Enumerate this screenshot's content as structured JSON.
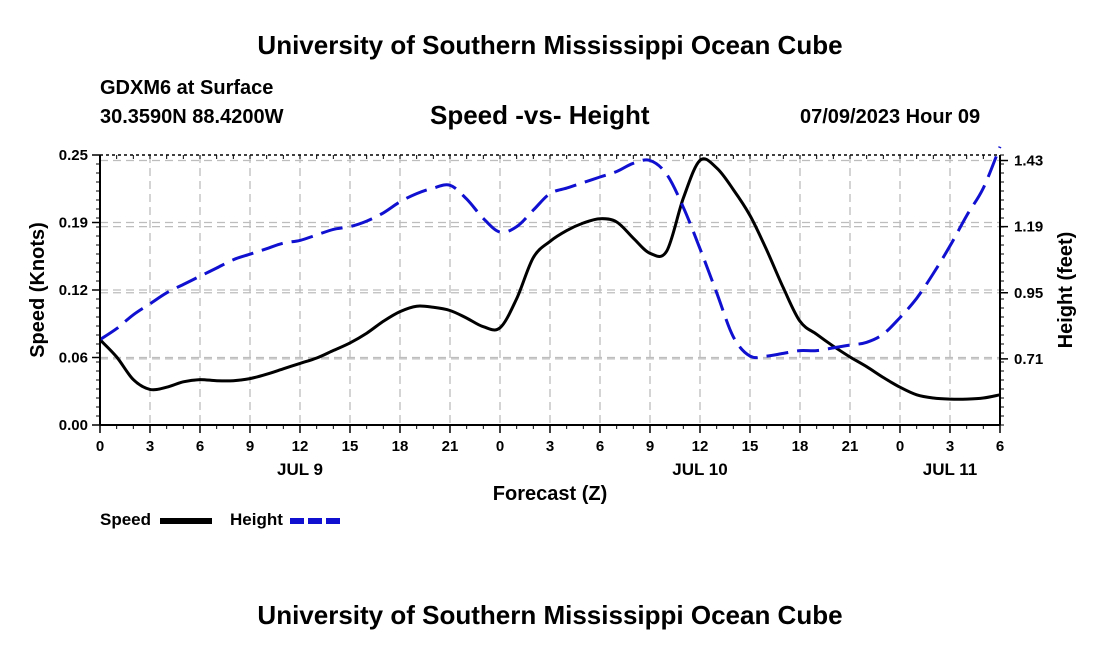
{
  "header": {
    "main_title": "University of Southern Mississippi Ocean Cube",
    "station": "GDXM6 at Surface",
    "coords": "30.3590N  88.4200W",
    "chart_title": "Speed -vs- Height",
    "datetime": "07/09/2023 Hour 09"
  },
  "footer": {
    "title": "University of Southern Mississippi Ocean Cube"
  },
  "legend": {
    "speed_label": "Speed",
    "height_label": "Height"
  },
  "colors": {
    "speed": "#000000",
    "height": "#1010d0",
    "grid": "#bdbdbd"
  },
  "chart_data": {
    "type": "line",
    "title": "Speed -vs- Height",
    "xlabel": "Forecast (Z)",
    "ylabel": "Speed (Knots)",
    "y2label": "Height (feet)",
    "x_range": [
      0,
      54
    ],
    "x_ticks": [
      {
        "x": 0,
        "label": "0"
      },
      {
        "x": 3,
        "label": "3"
      },
      {
        "x": 6,
        "label": "6"
      },
      {
        "x": 9,
        "label": "9"
      },
      {
        "x": 12,
        "label": "12"
      },
      {
        "x": 15,
        "label": "15"
      },
      {
        "x": 18,
        "label": "18"
      },
      {
        "x": 21,
        "label": "21"
      },
      {
        "x": 24,
        "label": "0"
      },
      {
        "x": 27,
        "label": "3"
      },
      {
        "x": 30,
        "label": "6"
      },
      {
        "x": 33,
        "label": "9"
      },
      {
        "x": 36,
        "label": "12"
      },
      {
        "x": 39,
        "label": "15"
      },
      {
        "x": 42,
        "label": "18"
      },
      {
        "x": 45,
        "label": "21"
      },
      {
        "x": 48,
        "label": "0"
      },
      {
        "x": 51,
        "label": "3"
      },
      {
        "x": 54,
        "label": "6"
      }
    ],
    "day_labels": [
      {
        "x": 12,
        "label": "JUL 9"
      },
      {
        "x": 36,
        "label": "JUL 10"
      },
      {
        "x": 51,
        "label": "JUL 11"
      }
    ],
    "ylim": [
      0,
      0.25
    ],
    "y_ticks": [
      "0.00",
      "0.06",
      "0.12",
      "0.19",
      "0.25"
    ],
    "y_tick_values": [
      0,
      0.0625,
      0.125,
      0.1875,
      0.25
    ],
    "y2lim": [
      0.47,
      1.45
    ],
    "y2_ticks": [
      "0.71",
      "0.95",
      "1.19",
      "1.43"
    ],
    "y2_tick_values": [
      0.71,
      0.95,
      1.19,
      1.43
    ],
    "series": [
      {
        "name": "Speed",
        "axis": "left",
        "style": "solid",
        "x": [
          0,
          1,
          2,
          3,
          4,
          5,
          6,
          7,
          8,
          9,
          10,
          11,
          12,
          13,
          14,
          15,
          16,
          17,
          18,
          19,
          20,
          21,
          22,
          23,
          24,
          25,
          26,
          27,
          28,
          29,
          30,
          31,
          32,
          33,
          34,
          35,
          36,
          37,
          38,
          39,
          40,
          41,
          42,
          43,
          44,
          45,
          46,
          47,
          48,
          49,
          50,
          51,
          52,
          53,
          54
        ],
        "values": [
          0.079,
          0.063,
          0.042,
          0.033,
          0.035,
          0.04,
          0.042,
          0.041,
          0.041,
          0.043,
          0.047,
          0.052,
          0.057,
          0.062,
          0.069,
          0.076,
          0.085,
          0.096,
          0.105,
          0.11,
          0.109,
          0.106,
          0.099,
          0.091,
          0.09,
          0.117,
          0.155,
          0.17,
          0.18,
          0.187,
          0.191,
          0.188,
          0.173,
          0.159,
          0.161,
          0.21,
          0.245,
          0.238,
          0.218,
          0.194,
          0.162,
          0.127,
          0.096,
          0.084,
          0.073,
          0.063,
          0.054,
          0.044,
          0.035,
          0.028,
          0.025,
          0.024,
          0.024,
          0.025,
          0.028
        ]
      },
      {
        "name": "Height",
        "axis": "right",
        "style": "dashed",
        "x": [
          0,
          1,
          2,
          3,
          4,
          5,
          6,
          7,
          8,
          9,
          10,
          11,
          12,
          13,
          14,
          15,
          16,
          17,
          18,
          19,
          20,
          21,
          22,
          23,
          24,
          25,
          26,
          27,
          28,
          29,
          30,
          31,
          32,
          33,
          34,
          35,
          36,
          37,
          38,
          39,
          40,
          41,
          42,
          43,
          44,
          45,
          46,
          47,
          48,
          49,
          50,
          51,
          52,
          53,
          54
        ],
        "values": [
          0.78,
          0.82,
          0.87,
          0.91,
          0.95,
          0.98,
          1.01,
          1.04,
          1.07,
          1.09,
          1.11,
          1.13,
          1.14,
          1.16,
          1.18,
          1.19,
          1.21,
          1.24,
          1.28,
          1.31,
          1.33,
          1.34,
          1.29,
          1.22,
          1.17,
          1.19,
          1.25,
          1.31,
          1.33,
          1.35,
          1.37,
          1.39,
          1.42,
          1.43,
          1.38,
          1.26,
          1.11,
          0.95,
          0.79,
          0.72,
          0.72,
          0.73,
          0.74,
          0.74,
          0.75,
          0.76,
          0.77,
          0.8,
          0.86,
          0.93,
          1.02,
          1.12,
          1.23,
          1.33,
          1.48
        ]
      }
    ]
  }
}
